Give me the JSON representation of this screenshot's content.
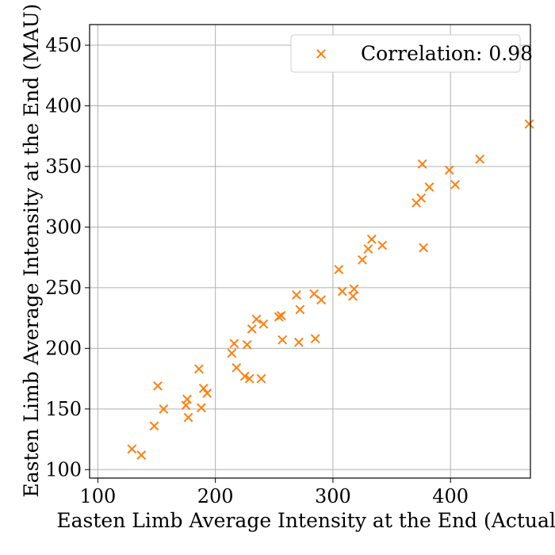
{
  "chart_data": {
    "type": "scatter",
    "title": "",
    "xlabel": "Easten Limb Average Intensity at the End (Actual)",
    "ylabel": "Easten Limb Average Intensity at the End (MAU)",
    "xlim": [
      93,
      468
    ],
    "ylim": [
      93,
      467
    ],
    "xticks": [
      100,
      200,
      300,
      400
    ],
    "yticks": [
      100,
      150,
      200,
      250,
      300,
      350,
      400,
      450
    ],
    "grid": true,
    "legend_position": "top-right",
    "series": [
      {
        "name": "Correlation: 0.98",
        "color": "#ff7f0e",
        "marker": "x",
        "points": [
          {
            "x": 129,
            "y": 117
          },
          {
            "x": 137,
            "y": 112
          },
          {
            "x": 148,
            "y": 136
          },
          {
            "x": 151,
            "y": 169
          },
          {
            "x": 156,
            "y": 150
          },
          {
            "x": 175,
            "y": 153
          },
          {
            "x": 176,
            "y": 158
          },
          {
            "x": 177,
            "y": 143
          },
          {
            "x": 186,
            "y": 183
          },
          {
            "x": 188,
            "y": 151
          },
          {
            "x": 190,
            "y": 167
          },
          {
            "x": 193,
            "y": 163
          },
          {
            "x": 214,
            "y": 196
          },
          {
            "x": 216,
            "y": 204
          },
          {
            "x": 218,
            "y": 184
          },
          {
            "x": 225,
            "y": 177
          },
          {
            "x": 227,
            "y": 203
          },
          {
            "x": 229,
            "y": 175
          },
          {
            "x": 231,
            "y": 216
          },
          {
            "x": 235,
            "y": 224
          },
          {
            "x": 239,
            "y": 175
          },
          {
            "x": 241,
            "y": 220
          },
          {
            "x": 254,
            "y": 226
          },
          {
            "x": 256,
            "y": 227
          },
          {
            "x": 257,
            "y": 207
          },
          {
            "x": 269,
            "y": 244
          },
          {
            "x": 271,
            "y": 205
          },
          {
            "x": 272,
            "y": 232
          },
          {
            "x": 284,
            "y": 245
          },
          {
            "x": 285,
            "y": 208
          },
          {
            "x": 290,
            "y": 240
          },
          {
            "x": 305,
            "y": 265
          },
          {
            "x": 308,
            "y": 247
          },
          {
            "x": 317,
            "y": 243
          },
          {
            "x": 318,
            "y": 249
          },
          {
            "x": 325,
            "y": 273
          },
          {
            "x": 330,
            "y": 282
          },
          {
            "x": 333,
            "y": 290
          },
          {
            "x": 342,
            "y": 285
          },
          {
            "x": 371,
            "y": 320
          },
          {
            "x": 375,
            "y": 324
          },
          {
            "x": 376,
            "y": 352
          },
          {
            "x": 377,
            "y": 283
          },
          {
            "x": 382,
            "y": 333
          },
          {
            "x": 399,
            "y": 347
          },
          {
            "x": 404,
            "y": 335
          },
          {
            "x": 425,
            "y": 356
          },
          {
            "x": 467,
            "y": 385
          }
        ]
      }
    ]
  }
}
